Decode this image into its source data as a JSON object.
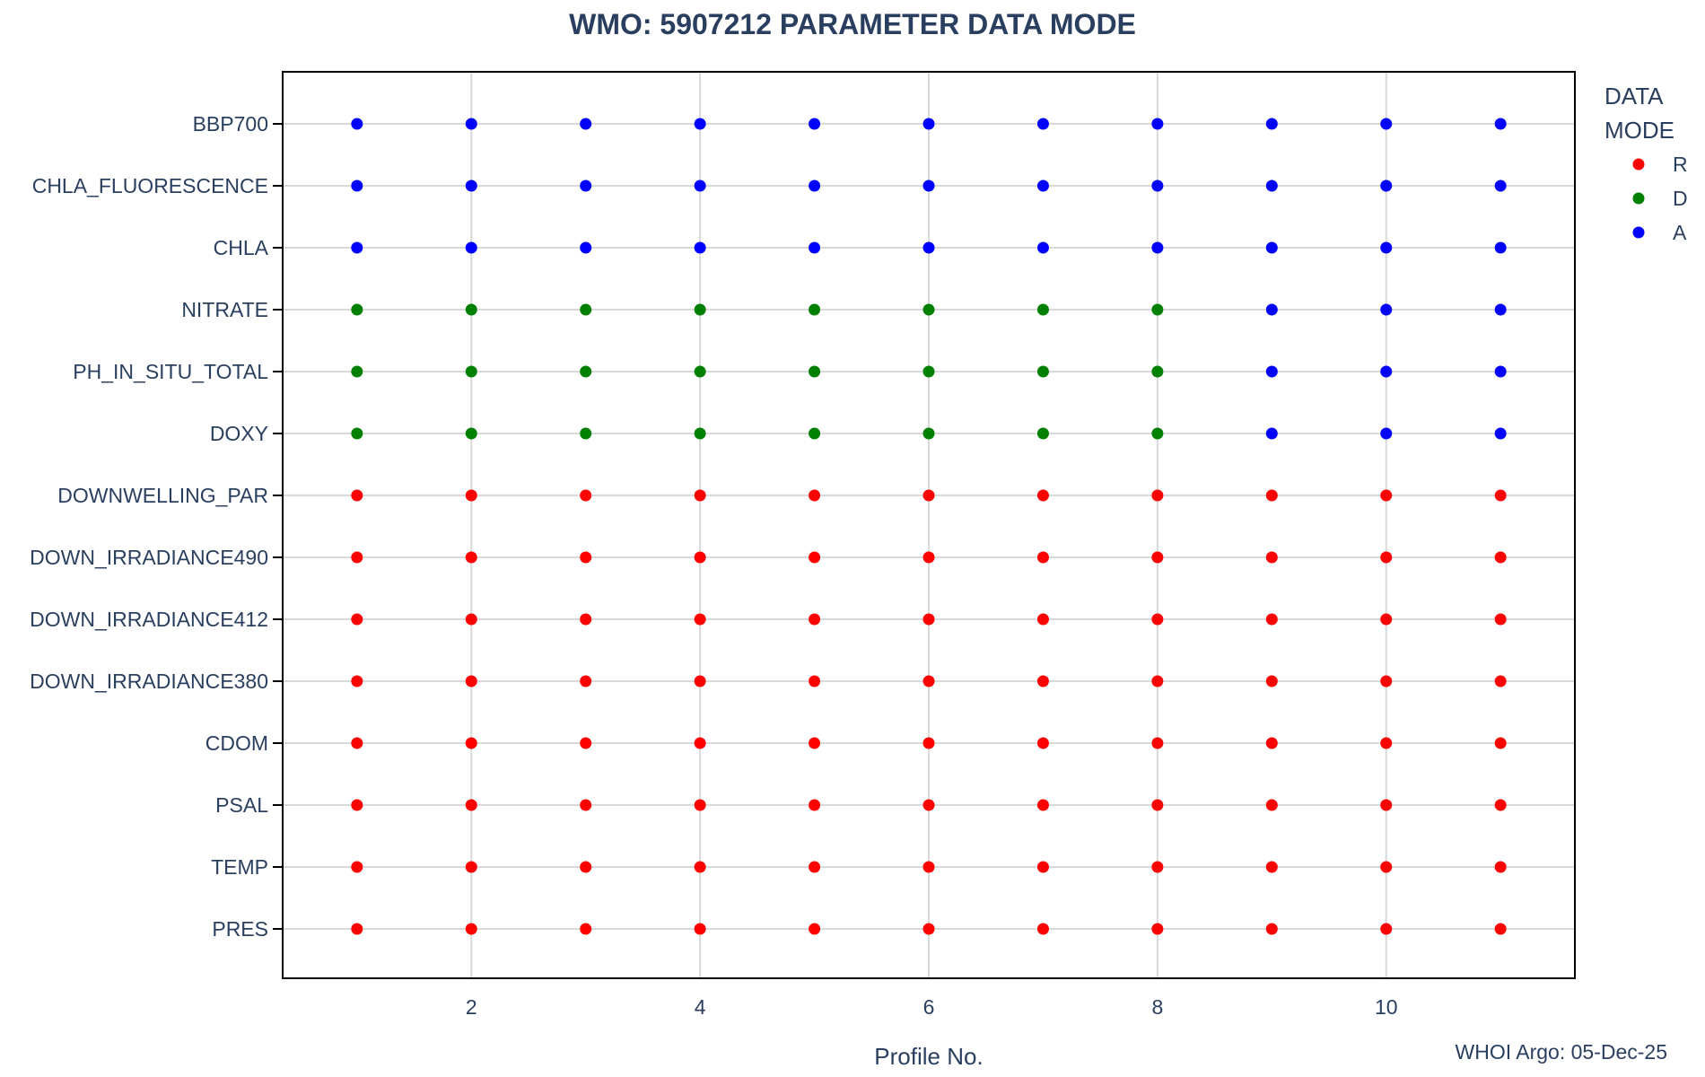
{
  "chart_data": {
    "type": "scatter",
    "title": "WMO: 5907212 PARAMETER DATA MODE",
    "xlabel": "Profile No.",
    "ylabel": "",
    "xlim": [
      0.35,
      11.65
    ],
    "x_ticks": [
      2,
      4,
      6,
      8,
      10
    ],
    "grid": true,
    "legend_position": "right",
    "legend_title": [
      "DATA",
      "MODE"
    ],
    "annotation": "WHOI Argo: 05-Dec-25",
    "parameters": [
      "BBP700",
      "CHLA_FLUORESCENCE",
      "CHLA",
      "NITRATE",
      "PH_IN_SITU_TOTAL",
      "DOXY",
      "DOWNWELLING_PAR",
      "DOWN_IRRADIANCE490",
      "DOWN_IRRADIANCE412",
      "DOWN_IRRADIANCE380",
      "CDOM",
      "PSAL",
      "TEMP",
      "PRES"
    ],
    "profiles": [
      1,
      2,
      3,
      4,
      5,
      6,
      7,
      8,
      9,
      10,
      11
    ],
    "modes": {
      "BBP700": [
        "A",
        "A",
        "A",
        "A",
        "A",
        "A",
        "A",
        "A",
        "A",
        "A",
        "A"
      ],
      "CHLA_FLUORESCENCE": [
        "A",
        "A",
        "A",
        "A",
        "A",
        "A",
        "A",
        "A",
        "A",
        "A",
        "A"
      ],
      "CHLA": [
        "A",
        "A",
        "A",
        "A",
        "A",
        "A",
        "A",
        "A",
        "A",
        "A",
        "A"
      ],
      "NITRATE": [
        "D",
        "D",
        "D",
        "D",
        "D",
        "D",
        "D",
        "D",
        "A",
        "A",
        "A"
      ],
      "PH_IN_SITU_TOTAL": [
        "D",
        "D",
        "D",
        "D",
        "D",
        "D",
        "D",
        "D",
        "A",
        "A",
        "A"
      ],
      "DOXY": [
        "D",
        "D",
        "D",
        "D",
        "D",
        "D",
        "D",
        "D",
        "A",
        "A",
        "A"
      ],
      "DOWNWELLING_PAR": [
        "R",
        "R",
        "R",
        "R",
        "R",
        "R",
        "R",
        "R",
        "R",
        "R",
        "R"
      ],
      "DOWN_IRRADIANCE490": [
        "R",
        "R",
        "R",
        "R",
        "R",
        "R",
        "R",
        "R",
        "R",
        "R",
        "R"
      ],
      "DOWN_IRRADIANCE412": [
        "R",
        "R",
        "R",
        "R",
        "R",
        "R",
        "R",
        "R",
        "R",
        "R",
        "R"
      ],
      "DOWN_IRRADIANCE380": [
        "R",
        "R",
        "R",
        "R",
        "R",
        "R",
        "R",
        "R",
        "R",
        "R",
        "R"
      ],
      "CDOM": [
        "R",
        "R",
        "R",
        "R",
        "R",
        "R",
        "R",
        "R",
        "R",
        "R",
        "R"
      ],
      "PSAL": [
        "R",
        "R",
        "R",
        "R",
        "R",
        "R",
        "R",
        "R",
        "R",
        "R",
        "R"
      ],
      "TEMP": [
        "R",
        "R",
        "R",
        "R",
        "R",
        "R",
        "R",
        "R",
        "R",
        "R",
        "R"
      ],
      "PRES": [
        "R",
        "R",
        "R",
        "R",
        "R",
        "R",
        "R",
        "R",
        "R",
        "R",
        "R"
      ]
    },
    "series": [
      {
        "name": "R",
        "color": "#ff0000"
      },
      {
        "name": "D",
        "color": "#008000"
      },
      {
        "name": "A",
        "color": "#0000ff"
      }
    ]
  }
}
